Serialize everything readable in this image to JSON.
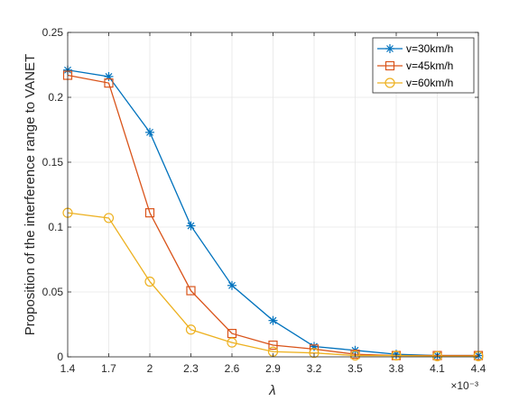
{
  "chart_data": {
    "type": "line",
    "xlabel": "λ",
    "ylabel": "Proposition of the interference range to VANET",
    "x_multiplier_label": "×10⁻³",
    "x": [
      1.4,
      1.7,
      2.0,
      2.3,
      2.6,
      2.9,
      3.2,
      3.5,
      3.8,
      4.1,
      4.4
    ],
    "x_tick_labels": [
      "1.4",
      "1.7",
      "2",
      "2.3",
      "2.6",
      "2.9",
      "3.2",
      "3.5",
      "3.8",
      "4.1",
      "4.4"
    ],
    "xlim": [
      1.4,
      4.4
    ],
    "ylim": [
      0,
      0.25
    ],
    "y_ticks": [
      0,
      0.05,
      0.1,
      0.15,
      0.2,
      0.25
    ],
    "y_tick_labels": [
      "0",
      "0.05",
      "0.1",
      "0.15",
      "0.2",
      "0.25"
    ],
    "grid": true,
    "legend_position": "top-right",
    "series": [
      {
        "name": "v=30km/h",
        "color": "#0072BD",
        "marker": "asterisk",
        "values": [
          0.221,
          0.216,
          0.173,
          0.101,
          0.055,
          0.028,
          0.008,
          0.005,
          0.002,
          0.001,
          0.001
        ]
      },
      {
        "name": "v=45km/h",
        "color": "#D95319",
        "marker": "square",
        "values": [
          0.217,
          0.211,
          0.111,
          0.051,
          0.018,
          0.009,
          0.006,
          0.002,
          0.001,
          0.001,
          0.001
        ]
      },
      {
        "name": "v=60km/h",
        "color": "#EDB120",
        "marker": "circle",
        "values": [
          0.111,
          0.107,
          0.058,
          0.021,
          0.011,
          0.004,
          0.003,
          0.001,
          0.001,
          0.0005,
          0.0005
        ]
      }
    ]
  }
}
